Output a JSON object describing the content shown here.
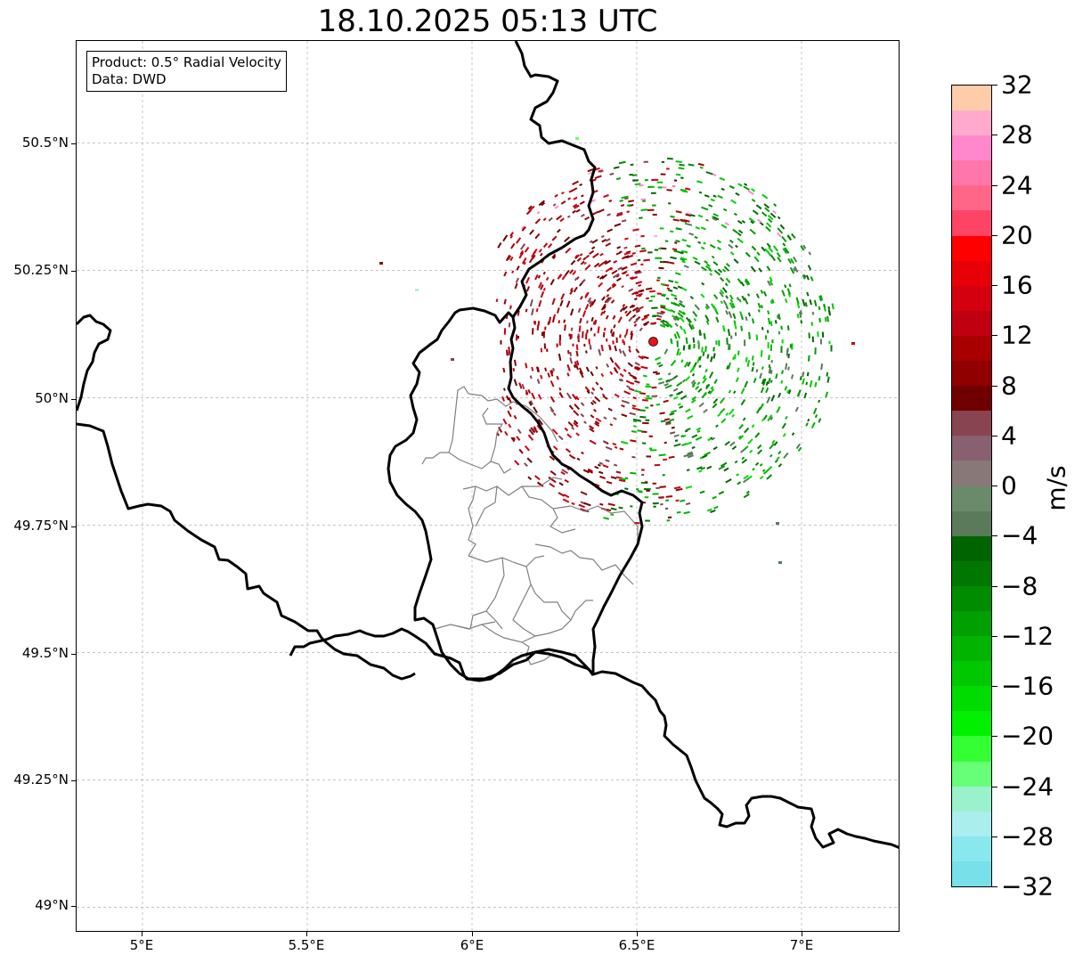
{
  "title": "18.10.2025 05:13 UTC",
  "info_box": {
    "product_line": "Product: 0.5° Radial Velocity",
    "data_line": "Data: DWD"
  },
  "axes": {
    "lon_ticks": [
      "5°E",
      "5.5°E",
      "6°E",
      "6.5°E",
      "7°E"
    ],
    "lat_ticks": [
      "50.5°N",
      "50.25°N",
      "50°N",
      "49.75°N",
      "49.5°N",
      "49.25°N",
      "49°N"
    ],
    "lon_range": [
      4.8,
      7.3
    ],
    "lat_range": [
      48.95,
      50.7
    ]
  },
  "radar_site": {
    "lon": 6.55,
    "lat": 50.11,
    "color": "#e8141c"
  },
  "colorbar": {
    "unit": "m/s",
    "min": -32,
    "max": 32,
    "tick_labels": [
      "32",
      "28",
      "24",
      "20",
      "16",
      "12",
      "8",
      "4",
      "0",
      "−4",
      "−8",
      "−12",
      "−16",
      "−20",
      "−24",
      "−28",
      "−32"
    ],
    "colors_top_to_bottom": [
      "#ffccaa",
      "#ffaacc",
      "#ff88cc",
      "#ff77aa",
      "#ff6688",
      "#ff4466",
      "#ff0000",
      "#e80008",
      "#d40010",
      "#c00010",
      "#a80000",
      "#900000",
      "#700000",
      "#884450",
      "#886070",
      "#887878",
      "#6a8a6a",
      "#5a7a5a",
      "#006400",
      "#007800",
      "#008c00",
      "#00a000",
      "#00b400",
      "#00c800",
      "#00dc00",
      "#00f000",
      "#33ff33",
      "#66ff77",
      "#99f2cc",
      "#aaeeee",
      "#88e8ee",
      "#77e0e8"
    ]
  },
  "colors": {
    "border": "#000000",
    "admin": "#808080",
    "grid": "#b0b0b0"
  }
}
